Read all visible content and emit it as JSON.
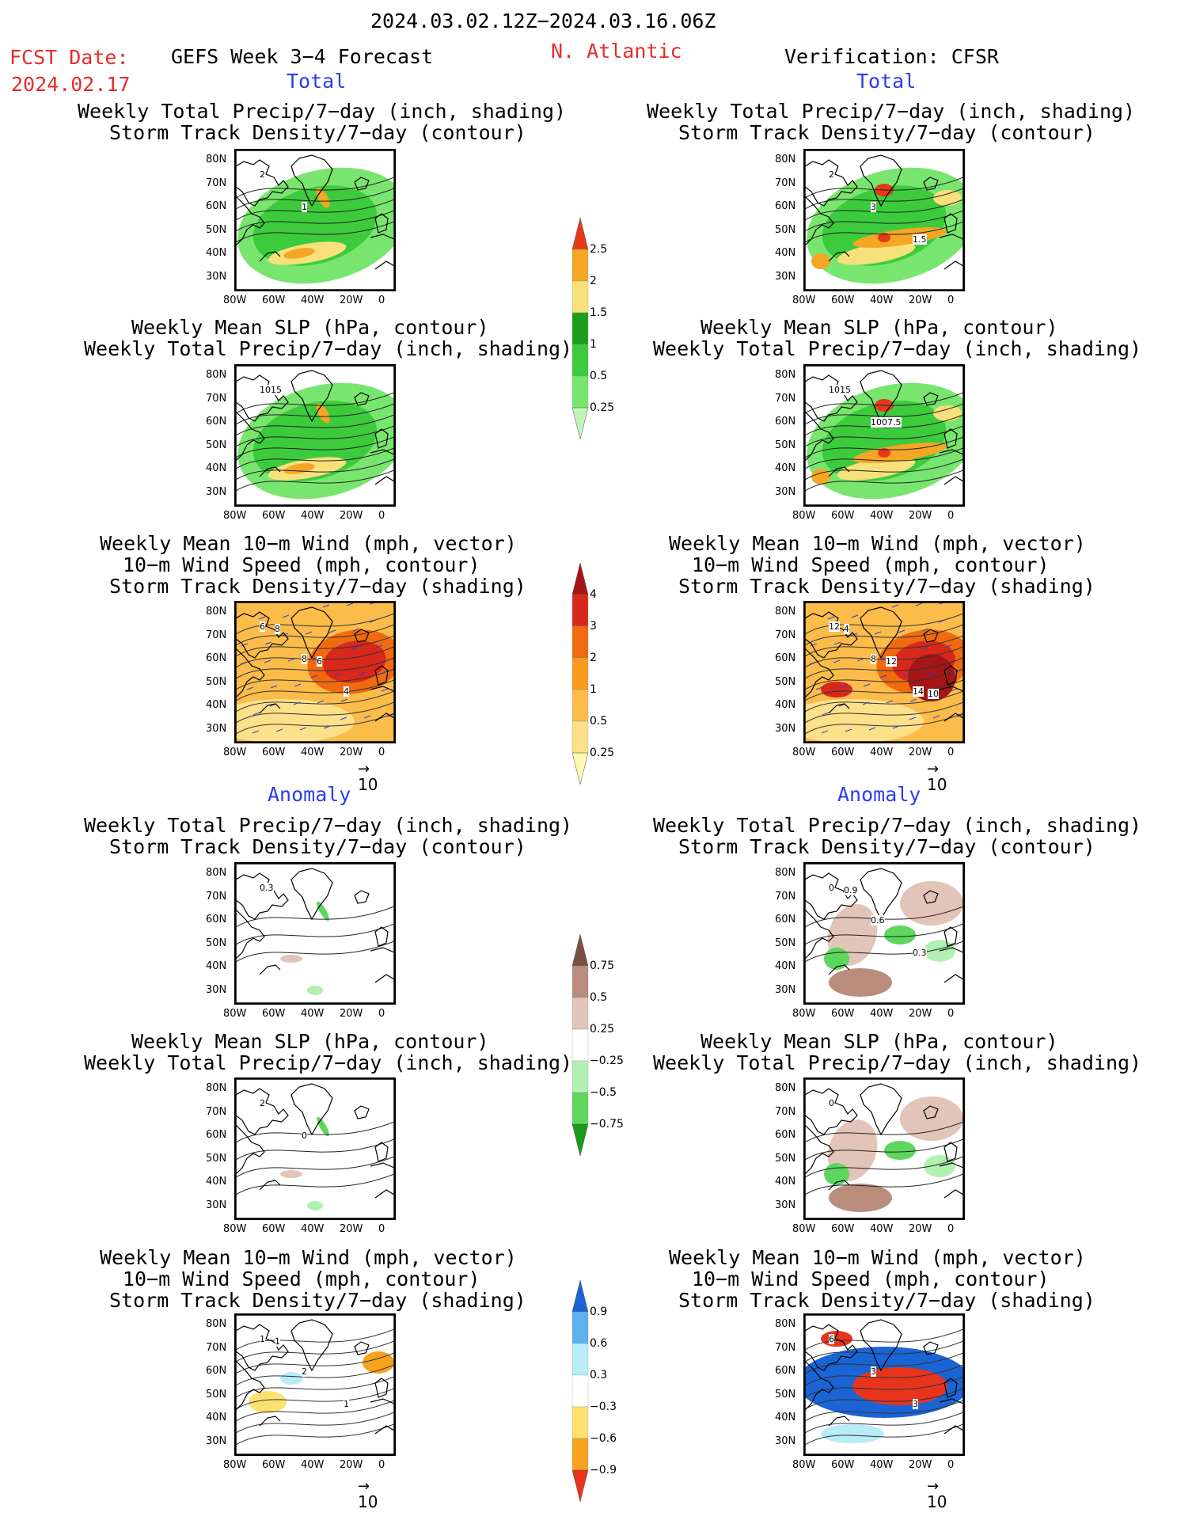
{
  "header": {
    "period": "2024.03.02.12Z−2024.03.16.06Z",
    "fcst_label": "FCST Date:",
    "fcst_date": "2024.02.17",
    "forecast_name": "GEFS Week 3−4 Forecast",
    "region": "N. Atlantic",
    "verification": "Verification: CFSR"
  },
  "sections": {
    "total": "Total",
    "anomaly": "Anomaly"
  },
  "titles": {
    "precip_storm": [
      "Weekly Total Precip/7−day (inch, shading)",
      "Storm Track Density/7−day (contour)"
    ],
    "slp_precip": [
      "Weekly Mean SLP (hPa, contour)",
      "Weekly Total Precip/7−day (inch, shading)"
    ],
    "wind_storm": [
      "Weekly Mean 10−m Wind (mph, vector)",
      "10−m Wind Speed (mph, contour)",
      "Storm Track Density/7−day (shading)"
    ]
  },
  "axes": {
    "lat_ticks": [
      "80N",
      "70N",
      "60N",
      "50N",
      "40N",
      "30N"
    ],
    "lon_ticks": [
      "80W",
      "60W",
      "40W",
      "20W",
      "0"
    ]
  },
  "vector_ref": "10",
  "contour_labels": {
    "ff1": [
      "2",
      "1"
    ],
    "vf1": [
      "2",
      "3",
      "1.5"
    ],
    "fs2": [
      "1015"
    ],
    "vs2": [
      "1015",
      "1007.5"
    ],
    "fw3": [
      "6",
      "8",
      "4",
      "8",
      "6"
    ],
    "vw3": [
      "12",
      "8",
      "14",
      "4",
      "12",
      "10"
    ],
    "fa4": [
      "0.3"
    ],
    "va4": [
      "0",
      "0.6",
      "0.3",
      "0.9"
    ],
    "fa5": [
      "2",
      "0"
    ],
    "va5": [
      "0"
    ],
    "fa6": [
      "1",
      "2",
      "1",
      "1"
    ],
    "va6": [
      "6",
      "3",
      "3"
    ]
  },
  "chart_data": {
    "type": "heatmap",
    "colorbars": [
      {
        "name": "precip_total",
        "levels": [
          "0.25",
          "0.5",
          "1",
          "1.5",
          "2",
          "2.5"
        ],
        "colors": [
          "#bff5b5",
          "#78e66e",
          "#3ccb3c",
          "#1e9e1e",
          "#f8e07a",
          "#f5a623",
          "#e63a1a"
        ]
      },
      {
        "name": "storm_total",
        "levels": [
          "0.25",
          "0.5",
          "1",
          "2",
          "3",
          "4"
        ],
        "colors": [
          "#fff7b0",
          "#fde08a",
          "#fbbc4a",
          "#f89a1c",
          "#f06a10",
          "#d8281a",
          "#a51515"
        ]
      },
      {
        "name": "precip_anom",
        "levels": [
          "0.75",
          "0.5",
          "0.25",
          "−0.25",
          "−0.5",
          "−0.75"
        ],
        "colors": [
          "#1a9a1a",
          "#5dd65d",
          "#b2f0b2",
          "#ffffff",
          "#e3c4b8",
          "#b98c7c",
          "#7a5040"
        ]
      },
      {
        "name": "storm_anom",
        "levels": [
          "0.9",
          "0.6",
          "0.3",
          "−0.3",
          "−0.6",
          "−0.9"
        ],
        "colors": [
          "#e8341c",
          "#f7a21f",
          "#fbe170",
          "#ffffff",
          "#b8ecf7",
          "#5fb0ee",
          "#1a64d6"
        ]
      }
    ]
  }
}
